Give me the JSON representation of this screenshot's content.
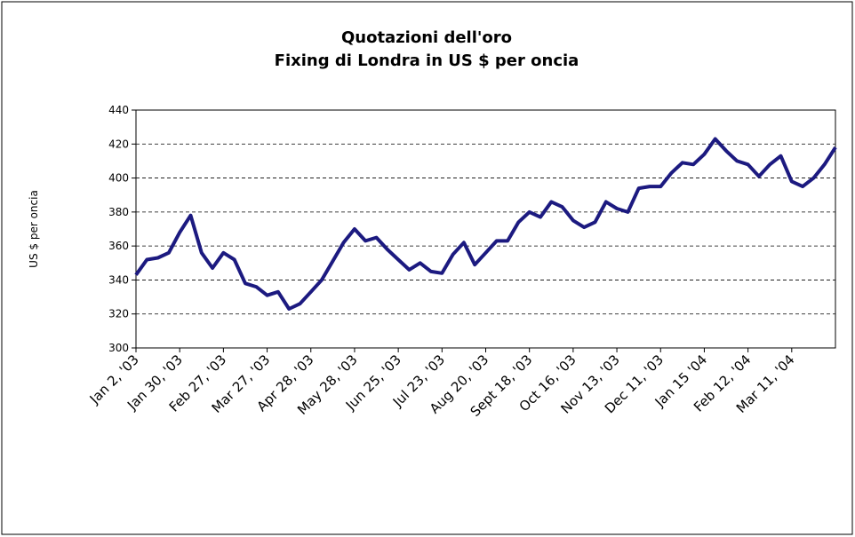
{
  "chart_data": {
    "type": "line",
    "title": "Quotazioni dell'oro",
    "subtitle": "Fixing di Londra in US $ per oncia",
    "y_label": "US $ per oncia",
    "categories": [
      "Jan 2, '03",
      null,
      null,
      null,
      "Jan 30, '03",
      null,
      null,
      null,
      "Feb 27, '03",
      null,
      null,
      null,
      "Mar 27, '03",
      null,
      null,
      null,
      "Apr 28, '03",
      null,
      null,
      null,
      "May 28, '03",
      null,
      null,
      null,
      "Jun 25, '03",
      null,
      null,
      null,
      "Jul 23, '03",
      null,
      null,
      null,
      "Aug 20, '03",
      null,
      null,
      null,
      "Sept 18, '03",
      null,
      null,
      null,
      "Oct 16, '03",
      null,
      null,
      null,
      "Nov 13, '03",
      null,
      null,
      null,
      "Dec 11, '03",
      null,
      null,
      null,
      "Jan 15 '04",
      null,
      null,
      null,
      "Feb 12, '04",
      null,
      null,
      null,
      "Mar 11, '04",
      null,
      null,
      null,
      null
    ],
    "series": [
      {
        "name": "Fixing",
        "color": "#1c1a80",
        "values": [
          343,
          352,
          353,
          356,
          368,
          378,
          356,
          347,
          356,
          352,
          338,
          336,
          331,
          333,
          323,
          326,
          333,
          340,
          351,
          362,
          370,
          363,
          365,
          358,
          352,
          346,
          350,
          345,
          344,
          355,
          362,
          349,
          356,
          363,
          363,
          374,
          380,
          377,
          386,
          383,
          375,
          371,
          374,
          386,
          382,
          380,
          394,
          395,
          395,
          403,
          409,
          408,
          414,
          423,
          416,
          410,
          408,
          401,
          408,
          413,
          398,
          395,
          400,
          408,
          418
        ]
      }
    ],
    "ylim": [
      300,
      440
    ],
    "yticks": [
      300,
      320,
      340,
      360,
      380,
      400,
      420,
      440
    ],
    "grid": true
  }
}
